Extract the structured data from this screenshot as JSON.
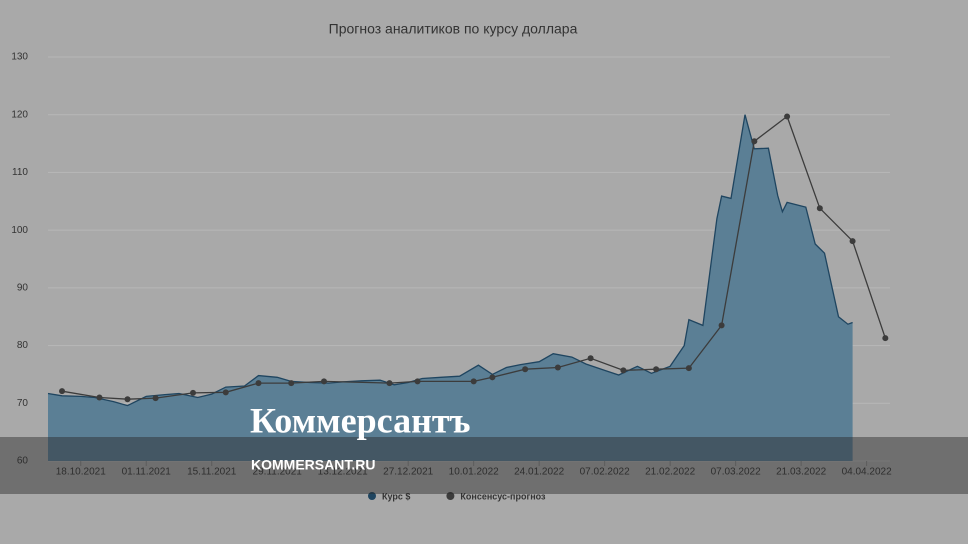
{
  "chart_data": {
    "type": "line",
    "title": "Прогноз аналитиков по курсу доллара",
    "ylim": [
      60,
      130
    ],
    "yticks": [
      60,
      70,
      80,
      90,
      100,
      110,
      120,
      130
    ],
    "grid": true,
    "xlim": [
      "11.10.2021",
      "09.04.2022"
    ],
    "xticks": [
      "18.10.2021",
      "01.11.2021",
      "15.11.2021",
      "29.11.2021",
      "13.12.2021",
      "27.12.2021",
      "10.01.2022",
      "24.01.2022",
      "07.02.2022",
      "21.02.2022",
      "07.03.2022",
      "21.03.2022",
      "04.04.2022"
    ],
    "legend": "bottom",
    "series": [
      {
        "name": "Курс $",
        "color": "#1f4560",
        "fill": "#5b7f95",
        "style": "area",
        "x": [
          "11.10.2021",
          "14.10.2021",
          "18.10.2021",
          "21.10.2021",
          "25.10.2021",
          "28.10.2021",
          "01.11.2021",
          "05.11.2021",
          "08.11.2021",
          "12.11.2021",
          "15.11.2021",
          "18.11.2021",
          "22.11.2021",
          "25.11.2021",
          "29.11.2021",
          "02.12.2021",
          "06.12.2021",
          "10.12.2021",
          "13.12.2021",
          "17.12.2021",
          "21.12.2021",
          "24.12.2021",
          "27.12.2021",
          "30.12.2021",
          "03.01.2022",
          "07.01.2022",
          "11.01.2022",
          "14.01.2022",
          "17.01.2022",
          "20.01.2022",
          "24.01.2022",
          "27.01.2022",
          "31.01.2022",
          "03.02.2022",
          "07.02.2022",
          "10.02.2022",
          "14.02.2022",
          "17.02.2022",
          "21.02.2022",
          "24.02.2022",
          "25.02.2022",
          "28.02.2022",
          "03.03.2022",
          "04.03.2022",
          "06.03.2022",
          "09.03.2022",
          "10.03.2022",
          "11.03.2022",
          "14.03.2022",
          "16.03.2022",
          "17.03.2022",
          "18.03.2022",
          "22.03.2022",
          "24.03.2022",
          "26.03.2022",
          "29.03.2022",
          "31.03.2022",
          "01.04.2022"
        ],
        "values": [
          71.7,
          71.3,
          71.2,
          71.0,
          70.3,
          69.6,
          71.2,
          71.5,
          71.7,
          71.0,
          71.6,
          72.8,
          73.0,
          74.8,
          74.5,
          73.8,
          73.6,
          73.5,
          73.7,
          73.9,
          74.0,
          73.2,
          73.6,
          74.3,
          74.5,
          74.7,
          76.6,
          75.0,
          76.2,
          76.7,
          77.2,
          78.6,
          78.0,
          76.8,
          75.7,
          74.9,
          76.4,
          75.2,
          76.4,
          80.0,
          84.5,
          83.5,
          102.0,
          105.9,
          105.5,
          120.0,
          117.0,
          114.1,
          114.2,
          106.0,
          103.2,
          104.8,
          104.0,
          97.6,
          96.0,
          85.0,
          83.7,
          84.0
        ]
      },
      {
        "name": "Консенсус-прогноз",
        "color": "#3c3c3c",
        "style": "line",
        "markers": true,
        "x": [
          "14.10.2021",
          "22.10.2021",
          "28.10.2021",
          "03.11.2021",
          "11.11.2021",
          "18.11.2021",
          "25.11.2021",
          "02.12.2021",
          "09.12.2021",
          "23.12.2021",
          "29.12.2021",
          "10.01.2022",
          "14.01.2022",
          "21.01.2022",
          "28.01.2022",
          "04.02.2022",
          "11.02.2022",
          "18.02.2022",
          "25.02.2022",
          "04.03.2022",
          "11.03.2022",
          "18.03.2022",
          "25.03.2022",
          "01.04.2022",
          "08.04.2022"
        ],
        "values": [
          72.1,
          71.0,
          70.7,
          70.9,
          71.8,
          71.9,
          73.5,
          73.5,
          73.8,
          73.5,
          73.8,
          73.8,
          74.5,
          75.9,
          76.2,
          77.8,
          75.7,
          75.9,
          76.1,
          83.5,
          115.4,
          119.7,
          103.8,
          98.1,
          81.3
        ]
      }
    ]
  },
  "watermark": {
    "logo": "Коммерсантъ",
    "site": "KOMMERSANT.RU"
  }
}
